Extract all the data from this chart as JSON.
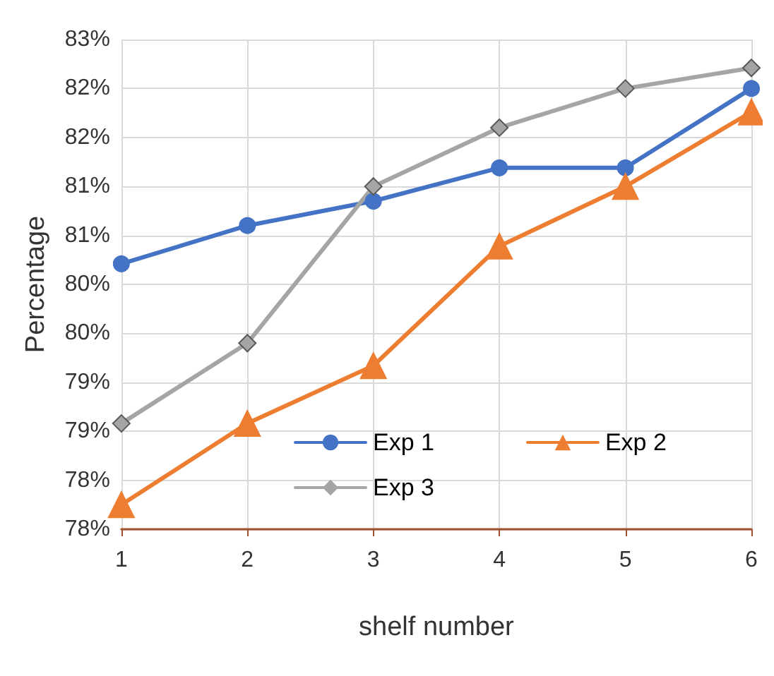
{
  "chart_data": {
    "type": "line",
    "xlabel": "shelf number",
    "ylabel": "Percentage",
    "categories": [
      "1",
      "2",
      "3",
      "4",
      "5",
      "6"
    ],
    "series": [
      {
        "name": "Exp 1",
        "color": "#4472c4",
        "marker": "circle",
        "values": [
          80.21,
          80.6,
          80.85,
          81.19,
          81.19,
          82.0
        ]
      },
      {
        "name": "Exp 2",
        "color": "#ed7d31",
        "marker": "triangle",
        "values": [
          77.75,
          78.58,
          79.17,
          80.39,
          81.0,
          81.76
        ]
      },
      {
        "name": "Exp 3",
        "color": "#a5a5a5",
        "marker": "diamond",
        "values": [
          78.58,
          79.4,
          81.0,
          81.6,
          82.0,
          82.21
        ]
      }
    ],
    "ylim": [
      77.5,
      82.5
    ],
    "yticks": [
      {
        "value": 77.5,
        "label": "78%"
      },
      {
        "value": 78,
        "label": "78%"
      },
      {
        "value": 78.5,
        "label": "79%"
      },
      {
        "value": 79,
        "label": "79%"
      },
      {
        "value": 79.5,
        "label": "80%"
      },
      {
        "value": 80,
        "label": "80%"
      },
      {
        "value": 80.5,
        "label": "81%"
      },
      {
        "value": 81,
        "label": "81%"
      },
      {
        "value": 81.5,
        "label": "82%"
      },
      {
        "value": 82,
        "label": "82%"
      },
      {
        "value": 82.5,
        "label": "83%"
      }
    ],
    "grid": true,
    "legend": "bottom"
  }
}
